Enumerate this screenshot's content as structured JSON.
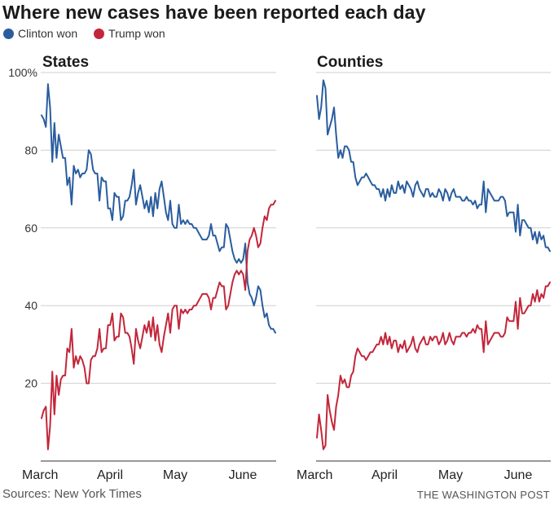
{
  "title": "Where new cases have been reported each day",
  "legend": [
    {
      "label": "Clinton won",
      "color": "#2a5d9f"
    },
    {
      "label": "Trump won",
      "color": "#c3263a"
    }
  ],
  "source": "Sources: New York Times",
  "credit": "THE WASHINGTON POST",
  "chart_data": [
    {
      "type": "line",
      "title": "States",
      "xlabel": "",
      "ylabel": "",
      "ylim": [
        0,
        100
      ],
      "yticks": [
        20,
        40,
        60,
        80,
        100
      ],
      "ytick_labels": [
        "20",
        "40",
        "60",
        "80",
        "100%"
      ],
      "xticks": [
        "March",
        "April",
        "May",
        "June"
      ],
      "x_unit": "day since March 1",
      "grid": true,
      "series": [
        {
          "name": "Clinton won",
          "color": "#2a5d9f",
          "values": [
            89,
            88,
            86,
            97,
            91,
            77,
            87,
            78,
            84,
            81,
            78,
            78,
            71,
            73,
            66,
            76,
            74,
            75,
            73,
            74,
            74,
            75,
            80,
            79,
            75,
            74,
            74,
            67,
            73,
            72,
            72,
            65,
            65,
            62,
            69,
            68,
            68,
            62,
            63,
            67,
            67,
            68,
            71,
            75,
            66,
            69,
            71,
            68,
            65,
            67,
            64,
            68,
            63,
            69,
            65,
            70,
            72,
            68,
            64,
            62,
            67,
            61,
            60,
            60,
            66,
            61,
            62,
            61,
            62,
            61,
            61,
            60,
            60,
            59,
            58,
            57,
            57,
            57,
            58,
            61,
            58,
            58,
            56,
            54,
            55,
            55,
            61,
            60,
            57,
            54,
            52,
            51,
            52,
            51,
            52,
            56,
            46,
            43,
            42,
            40,
            42,
            45,
            44,
            40,
            37,
            38,
            35,
            34,
            34,
            33
          ]
        },
        {
          "name": "Trump won",
          "color": "#c3263a",
          "values": [
            11,
            13,
            14,
            3,
            9,
            23,
            12,
            22,
            17,
            21,
            22,
            22,
            29,
            28,
            34,
            24,
            27,
            25,
            27,
            26,
            24,
            20,
            20,
            26,
            27,
            27,
            29,
            34,
            28,
            29,
            29,
            35,
            35,
            38,
            31,
            32,
            32,
            38,
            37,
            33,
            33,
            32,
            29,
            25,
            34,
            31,
            29,
            32,
            35,
            33,
            36,
            32,
            37,
            31,
            35,
            30,
            28,
            32,
            35,
            38,
            33,
            39,
            40,
            40,
            34,
            39,
            38,
            39,
            38,
            39,
            39,
            40,
            40,
            41,
            42,
            43,
            43,
            43,
            42,
            39,
            42,
            42,
            44,
            46,
            45,
            45,
            39,
            40,
            43,
            46,
            48,
            49,
            48,
            49,
            48,
            44,
            54,
            57,
            58,
            60,
            58,
            55,
            56,
            60,
            63,
            62,
            65,
            66,
            66,
            67
          ]
        }
      ]
    },
    {
      "type": "line",
      "title": "Counties",
      "xlabel": "",
      "ylabel": "",
      "ylim": [
        0,
        100
      ],
      "yticks": [
        20,
        40,
        60,
        80,
        100
      ],
      "xticks": [
        "March",
        "April",
        "May",
        "June"
      ],
      "x_unit": "day since March 1",
      "grid": true,
      "series": [
        {
          "name": "Clinton won",
          "color": "#2a5d9f",
          "values": [
            94,
            88,
            91,
            98,
            96,
            84,
            86,
            88,
            91,
            84,
            78,
            80,
            78,
            81,
            81,
            80,
            77,
            77,
            73,
            71,
            72,
            73,
            73,
            74,
            73,
            72,
            71,
            71,
            70,
            70,
            68,
            70,
            67,
            70,
            68,
            71,
            69,
            69,
            72,
            70,
            71,
            69,
            72,
            71,
            70,
            68,
            71,
            72,
            70,
            69,
            68,
            70,
            70,
            68,
            69,
            68,
            68,
            70,
            69,
            67,
            70,
            69,
            67,
            69,
            70,
            68,
            68,
            68,
            67,
            67,
            68,
            67,
            67,
            66,
            67,
            65,
            66,
            66,
            72,
            64,
            70,
            69,
            68,
            67,
            67,
            67,
            68,
            68,
            67,
            63,
            64,
            64,
            64,
            59,
            66,
            58,
            62,
            62,
            61,
            60,
            60,
            57,
            59,
            56,
            59,
            57,
            58,
            55,
            55,
            54
          ]
        },
        {
          "name": "Trump won",
          "color": "#c3263a",
          "values": [
            6,
            12,
            8,
            3,
            4,
            17,
            13,
            10,
            8,
            14,
            17,
            22,
            20,
            21,
            19,
            19,
            22,
            23,
            27,
            29,
            28,
            27,
            27,
            26,
            27,
            28,
            28,
            29,
            30,
            30,
            32,
            30,
            33,
            30,
            32,
            29,
            31,
            31,
            28,
            30,
            29,
            31,
            28,
            29,
            30,
            32,
            29,
            28,
            30,
            31,
            32,
            30,
            30,
            32,
            31,
            32,
            32,
            30,
            31,
            33,
            30,
            31,
            33,
            31,
            30,
            32,
            32,
            32,
            33,
            33,
            32,
            33,
            33,
            34,
            33,
            35,
            34,
            34,
            28,
            36,
            30,
            31,
            32,
            33,
            33,
            33,
            32,
            32,
            33,
            37,
            36,
            36,
            36,
            41,
            34,
            42,
            38,
            38,
            39,
            40,
            40,
            43,
            41,
            44,
            41,
            43,
            42,
            45,
            45,
            46
          ]
        }
      ]
    }
  ]
}
